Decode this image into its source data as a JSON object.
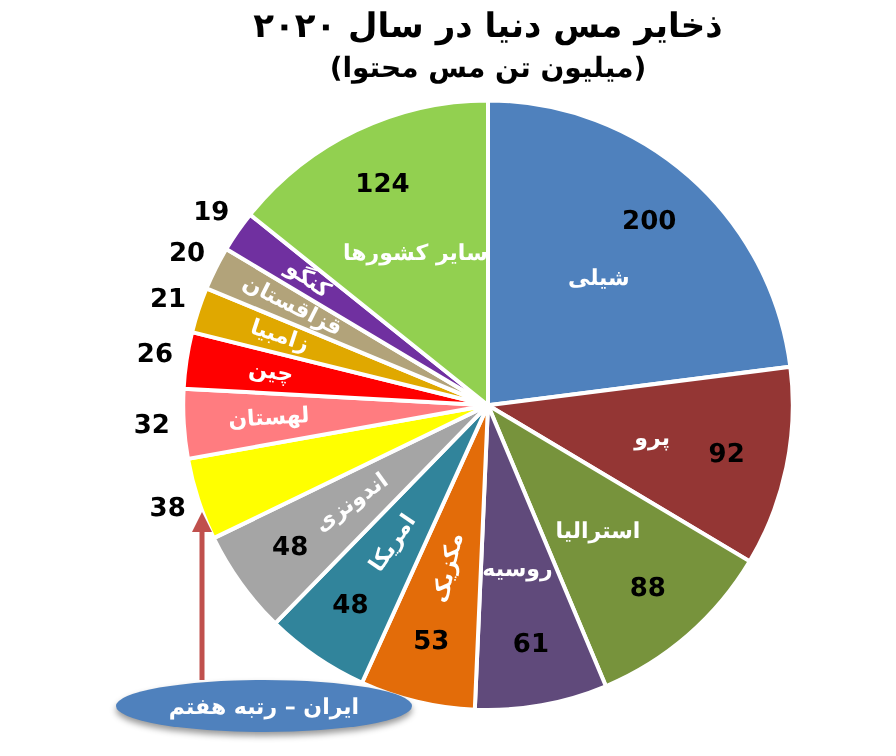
{
  "chart_data": {
    "type": "pie",
    "title": "ذخایر مس دنیا در سال ۲۰۲۰",
    "subtitle": "(میلیون تن مس محتوا)",
    "categories": [
      "شیلی",
      "پرو",
      "استرالیا",
      "روسیه",
      "مکزیک",
      "امریکا",
      "اندونزی",
      null,
      "لهستان",
      "چین",
      "زامبیا",
      "قزاقستان",
      "کنگو",
      "سایر کشورها"
    ],
    "values": [
      200,
      92,
      88,
      61,
      53,
      48,
      48,
      38,
      32,
      26,
      21,
      20,
      19,
      124
    ],
    "colors": [
      "#4f81bd",
      "#943634",
      "#77933c",
      "#604a7b",
      "#e36c09",
      "#31849b",
      "#a5a5a5",
      "#ffff00",
      "#ff7c80",
      "#ff0000",
      "#e0a800",
      "#b2a37a",
      "#7030a0",
      "#92d050"
    ],
    "data_labels": true,
    "legend": false,
    "annotations": [
      "ایران – رتبه هفتم"
    ]
  }
}
